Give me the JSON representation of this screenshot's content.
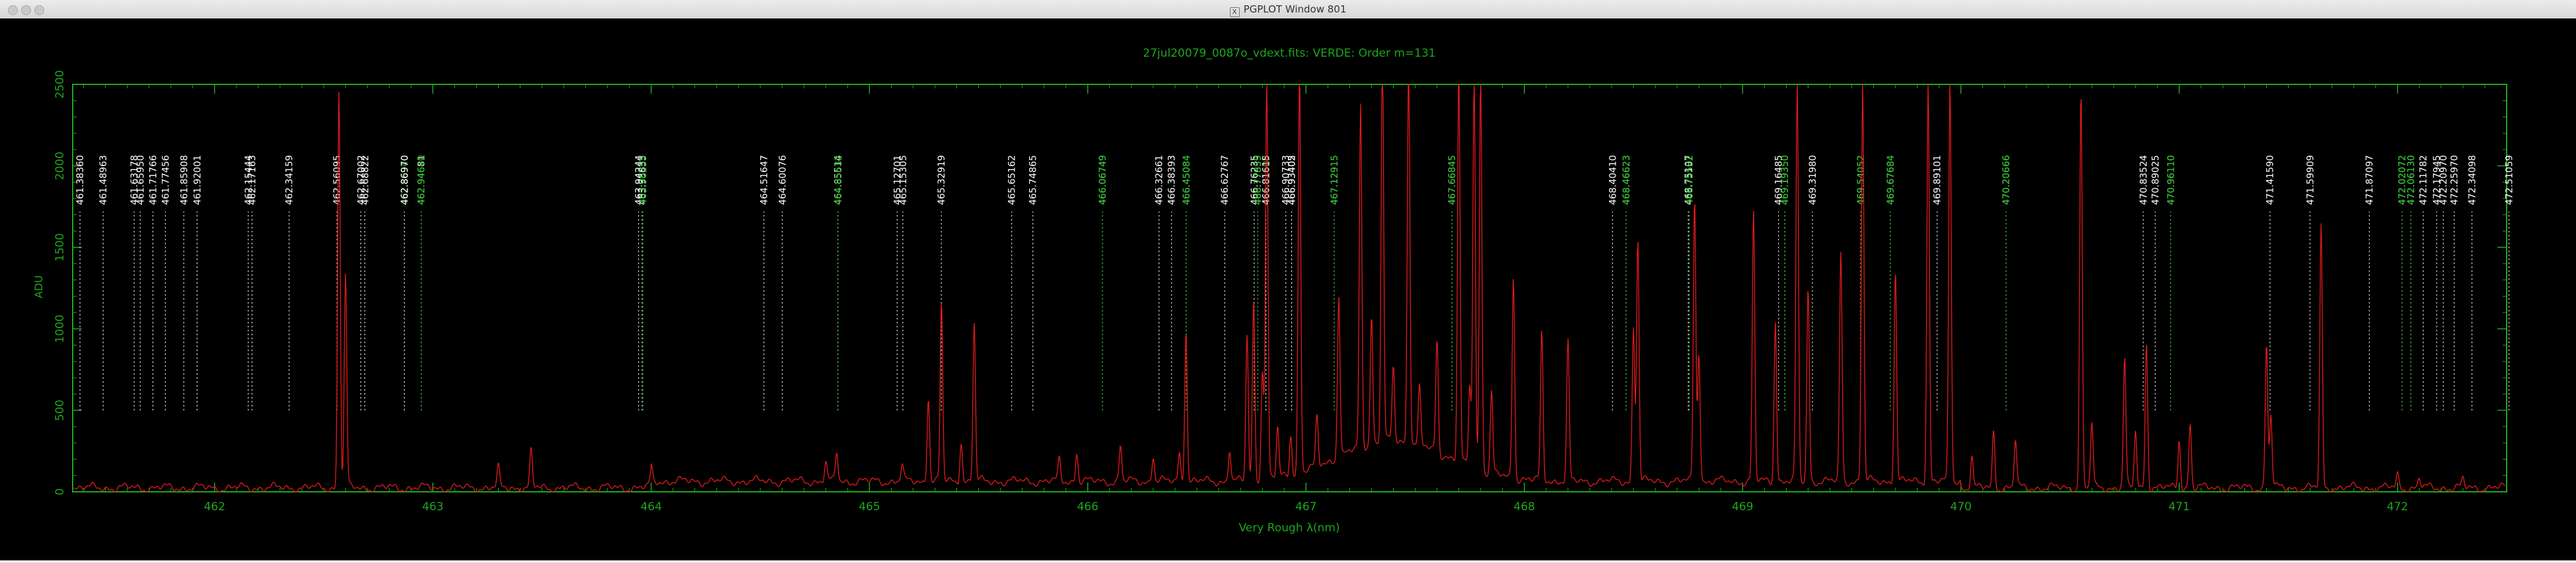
{
  "window": {
    "title": "PGPLOT Window 801"
  },
  "colors": {
    "frame": "#1ea51e",
    "spectrum": "#e31b1b",
    "label_white": "#ffffff",
    "label_green": "#22c022",
    "background": "#000000"
  },
  "chart_data": {
    "type": "line",
    "title": "27jul20079_0087o_vdext.fits: VERDE: Order m=131",
    "xlabel": "Very Rough λ(nm)",
    "ylabel": "ADU",
    "xlim": [
      461.35,
      472.5
    ],
    "ylim": [
      0,
      2500
    ],
    "x_ticks": [
      "462",
      "463",
      "464",
      "465",
      "466",
      "467",
      "468",
      "469",
      "470",
      "471",
      "472"
    ],
    "y_ticks": [
      "0",
      "500",
      "1000",
      "1500",
      "2000",
      "2500"
    ],
    "grid": false,
    "series": [
      {
        "peaks": [
          [
            462.57,
            2450
          ],
          [
            462.6,
            1300
          ],
          [
            463.3,
            120
          ],
          [
            463.45,
            220
          ],
          [
            464.0,
            90
          ],
          [
            464.8,
            120
          ],
          [
            464.85,
            180
          ],
          [
            465.15,
            100
          ],
          [
            465.27,
            530
          ],
          [
            465.33,
            1100
          ],
          [
            465.42,
            250
          ],
          [
            465.48,
            970
          ],
          [
            465.87,
            130
          ],
          [
            465.95,
            180
          ],
          [
            466.15,
            220
          ],
          [
            466.3,
            160
          ],
          [
            466.42,
            180
          ],
          [
            466.45,
            950
          ],
          [
            466.65,
            200
          ],
          [
            466.73,
            900
          ],
          [
            466.76,
            1100
          ],
          [
            466.8,
            700
          ],
          [
            466.82,
            2450
          ],
          [
            466.87,
            300
          ],
          [
            466.93,
            250
          ],
          [
            466.97,
            2500
          ],
          [
            467.05,
            300
          ],
          [
            467.15,
            1000
          ],
          [
            467.25,
            2100
          ],
          [
            467.3,
            800
          ],
          [
            467.35,
            2450
          ],
          [
            467.4,
            450
          ],
          [
            467.47,
            2450
          ],
          [
            467.52,
            350
          ],
          [
            467.6,
            700
          ],
          [
            467.7,
            2450
          ],
          [
            467.75,
            500
          ],
          [
            467.77,
            2450
          ],
          [
            467.8,
            2450
          ],
          [
            467.85,
            500
          ],
          [
            467.95,
            1250
          ],
          [
            468.08,
            900
          ],
          [
            468.2,
            850
          ],
          [
            468.5,
            950
          ],
          [
            468.52,
            1500
          ],
          [
            468.78,
            1750
          ],
          [
            468.8,
            800
          ],
          [
            469.05,
            1650
          ],
          [
            469.15,
            1000
          ],
          [
            469.25,
            2450
          ],
          [
            469.3,
            1200
          ],
          [
            469.45,
            1400
          ],
          [
            469.55,
            2450
          ],
          [
            469.7,
            1300
          ],
          [
            469.85,
            2450
          ],
          [
            469.95,
            2450
          ],
          [
            470.05,
            200
          ],
          [
            470.15,
            350
          ],
          [
            470.25,
            300
          ],
          [
            470.55,
            2450
          ],
          [
            470.6,
            400
          ],
          [
            470.75,
            800
          ],
          [
            470.8,
            350
          ],
          [
            470.85,
            900
          ],
          [
            471.0,
            300
          ],
          [
            471.05,
            400
          ],
          [
            471.4,
            900
          ],
          [
            471.42,
            450
          ],
          [
            471.65,
            1600
          ],
          [
            472.0,
            80
          ],
          [
            472.1,
            60
          ],
          [
            472.3,
            50
          ]
        ]
      }
    ],
    "line_labels": [
      {
        "x": 461.3836,
        "text": "461.38360",
        "color": "white"
      },
      {
        "x": 461.4896,
        "text": "461.48963",
        "color": "white"
      },
      {
        "x": 461.6318,
        "text": "461.63178",
        "color": "white"
      },
      {
        "x": 461.6595,
        "text": "461.65950",
        "color": "white"
      },
      {
        "x": 461.7177,
        "text": "461.71766",
        "color": "white"
      },
      {
        "x": 461.7746,
        "text": "461.77456",
        "color": "white"
      },
      {
        "x": 461.8591,
        "text": "461.85908",
        "color": "white"
      },
      {
        "x": 461.92,
        "text": "461.92001",
        "color": "white"
      },
      {
        "x": 462.1544,
        "text": "462.15444",
        "color": "white"
      },
      {
        "x": 462.1716,
        "text": "462.17163",
        "color": "white"
      },
      {
        "x": 462.3416,
        "text": "462.34159",
        "color": "white"
      },
      {
        "x": 462.5609,
        "text": "462.56095",
        "color": "white"
      },
      {
        "x": 462.67,
        "text": "462.67002",
        "color": "white"
      },
      {
        "x": 462.6882,
        "text": "462.68822",
        "color": "white"
      },
      {
        "x": 462.8694,
        "text": "462.86940",
        "color": "green"
      },
      {
        "x": 462.8697,
        "text": "462.86970",
        "color": "white"
      },
      {
        "x": 462.9468,
        "text": "462.94681",
        "color": "white"
      },
      {
        "x": 462.9464,
        "text": "462.94640",
        "color": "green"
      },
      {
        "x": 463.9424,
        "text": "463.94244",
        "color": "white"
      },
      {
        "x": 463.9585,
        "text": "463.95855",
        "color": "white"
      },
      {
        "x": 463.9626,
        "text": "463.96255",
        "color": "green"
      },
      {
        "x": 464.5165,
        "text": "464.51647",
        "color": "white"
      },
      {
        "x": 464.6008,
        "text": "464.60076",
        "color": "white"
      },
      {
        "x": 464.8551,
        "text": "464.85514",
        "color": "white"
      },
      {
        "x": 464.8563,
        "text": "464.85632",
        "color": "green"
      },
      {
        "x": 465.127,
        "text": "465.12701",
        "color": "white"
      },
      {
        "x": 465.153,
        "text": "465.15305",
        "color": "white"
      },
      {
        "x": 465.3292,
        "text": "465.32919",
        "color": "white"
      },
      {
        "x": 465.6516,
        "text": "465.65162",
        "color": "white"
      },
      {
        "x": 465.7487,
        "text": "465.74865",
        "color": "white"
      },
      {
        "x": 466.0675,
        "text": "466.06749",
        "color": "white"
      },
      {
        "x": 466.0675,
        "text": "466.06749",
        "color": "green"
      },
      {
        "x": 466.3266,
        "text": "466.32661",
        "color": "white"
      },
      {
        "x": 466.3839,
        "text": "466.38393",
        "color": "white"
      },
      {
        "x": 466.4508,
        "text": "466.45084",
        "color": "white"
      },
      {
        "x": 466.4508,
        "text": "466.45084",
        "color": "green"
      },
      {
        "x": 466.6277,
        "text": "466.62767",
        "color": "white"
      },
      {
        "x": 466.7624,
        "text": "466.76235",
        "color": "white"
      },
      {
        "x": 466.7786,
        "text": "466.77859",
        "color": "white"
      },
      {
        "x": 466.7786,
        "text": "466.77859",
        "color": "green"
      },
      {
        "x": 466.8161,
        "text": "466.81608",
        "color": "green"
      },
      {
        "x": 466.8162,
        "text": "466.81615",
        "color": "white"
      },
      {
        "x": 466.9073,
        "text": "466.90733",
        "color": "white"
      },
      {
        "x": 466.934,
        "text": "466.93402",
        "color": "white"
      },
      {
        "x": 466.9341,
        "text": "466.93405",
        "color": "white"
      },
      {
        "x": 467.1292,
        "text": "467.12915",
        "color": "white"
      },
      {
        "x": 467.1292,
        "text": "467.12915",
        "color": "green"
      },
      {
        "x": 467.6685,
        "text": "467.66845",
        "color": "white"
      },
      {
        "x": 467.6685,
        "text": "467.66845",
        "color": "green"
      },
      {
        "x": 468.4041,
        "text": "468.40410",
        "color": "white"
      },
      {
        "x": 468.4662,
        "text": "468.46623",
        "color": "white"
      },
      {
        "x": 468.4662,
        "text": "468.46623",
        "color": "green"
      },
      {
        "x": 468.7511,
        "text": "468.75107",
        "color": "white"
      },
      {
        "x": 468.7553,
        "text": "468.75532",
        "color": "white"
      },
      {
        "x": 468.7558,
        "text": "468.75582",
        "color": "green"
      },
      {
        "x": 469.1648,
        "text": "469.16485",
        "color": "white"
      },
      {
        "x": 469.1935,
        "text": "469.19350",
        "color": "white"
      },
      {
        "x": 469.1935,
        "text": "469.19350",
        "color": "green"
      },
      {
        "x": 469.3198,
        "text": "469.31980",
        "color": "white"
      },
      {
        "x": 469.5405,
        "text": "469.54052",
        "color": "white"
      },
      {
        "x": 469.5405,
        "text": "469.54052",
        "color": "green"
      },
      {
        "x": 469.6768,
        "text": "469.67684",
        "color": "white"
      },
      {
        "x": 469.6768,
        "text": "469.67684",
        "color": "green"
      },
      {
        "x": 469.891,
        "text": "469.89101",
        "color": "white"
      },
      {
        "x": 470.2067,
        "text": "470.20666",
        "color": "white"
      },
      {
        "x": 470.2067,
        "text": "470.20666",
        "color": "green"
      },
      {
        "x": 470.8352,
        "text": "470.83524",
        "color": "white"
      },
      {
        "x": 470.8902,
        "text": "470.89025",
        "color": "white"
      },
      {
        "x": 470.9611,
        "text": "470.96110",
        "color": "white"
      },
      {
        "x": 470.9611,
        "text": "470.96110",
        "color": "green"
      },
      {
        "x": 471.4159,
        "text": "471.41590",
        "color": "white"
      },
      {
        "x": 471.5991,
        "text": "471.59909",
        "color": "white"
      },
      {
        "x": 471.871,
        "text": "471.87097",
        "color": "white"
      },
      {
        "x": 472.0207,
        "text": "472.02072",
        "color": "white"
      },
      {
        "x": 472.0207,
        "text": "472.02072",
        "color": "green"
      },
      {
        "x": 472.0613,
        "text": "472.06130",
        "color": "white"
      },
      {
        "x": 472.0613,
        "text": "472.06130",
        "color": "green"
      },
      {
        "x": 472.1178,
        "text": "472.11782",
        "color": "white"
      },
      {
        "x": 472.1794,
        "text": "472.17945",
        "color": "white"
      },
      {
        "x": 472.2097,
        "text": "472.20970",
        "color": "white"
      },
      {
        "x": 472.2597,
        "text": "472.25970",
        "color": "white"
      },
      {
        "x": 472.341,
        "text": "472.34098",
        "color": "white"
      },
      {
        "x": 472.5106,
        "text": "472.51059",
        "color": "white"
      }
    ]
  }
}
